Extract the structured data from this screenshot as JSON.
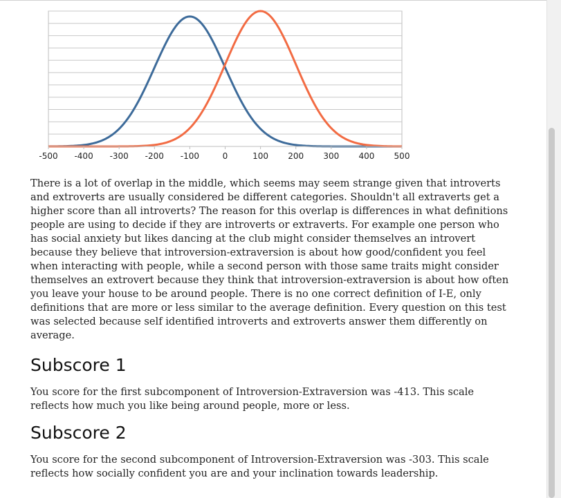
{
  "chart_data": {
    "type": "line",
    "x_ticks": [
      "-500",
      "-400",
      "-300",
      "-200",
      "-100",
      "0",
      "100",
      "200",
      "300",
      "400",
      "500"
    ],
    "xlim": [
      -500,
      500
    ],
    "grid": true,
    "series": [
      {
        "color": "#3d6b9a",
        "mean": -100,
        "sd": 100,
        "peak": 0.96
      },
      {
        "color": "#f26b43",
        "mean": 100,
        "sd": 100,
        "peak": 1.0
      }
    ]
  },
  "article": {
    "intro": "There is a lot of overlap in the middle, which seems may seem strange given that introverts and extroverts are usually considered be different categories. Shouldn't all extraverts get a higher score than all introverts? The reason for this overlap is differences in what definitions people are using to decide if they are introverts or extraverts. For example one person who has social anxiety but likes dancing at the club might consider themselves an introvert because they believe that introversion-extraversion is about how good/confident you feel when interacting with people, while a second person with those same traits might consider themselves an extrovert because they think that introversion-extraversion is about how often you leave your house to be around people. There is no one correct definition of I-E, only definitions that are more or less similar to the average definition. Every question on this test was selected because self identified introverts and extroverts answer them differently on average.",
    "sub1_heading": "Subscore 1",
    "sub1_text": "You score for the first subcomponent of Introversion-Extraversion was -413. This scale reflects how much you like being around people, more or less.",
    "sub2_heading": "Subscore 2",
    "sub2_text": "You score for the second subcomponent of Introversion-Extraversion was -303. This scale reflects how socially confident you are and your inclination towards leadership."
  }
}
